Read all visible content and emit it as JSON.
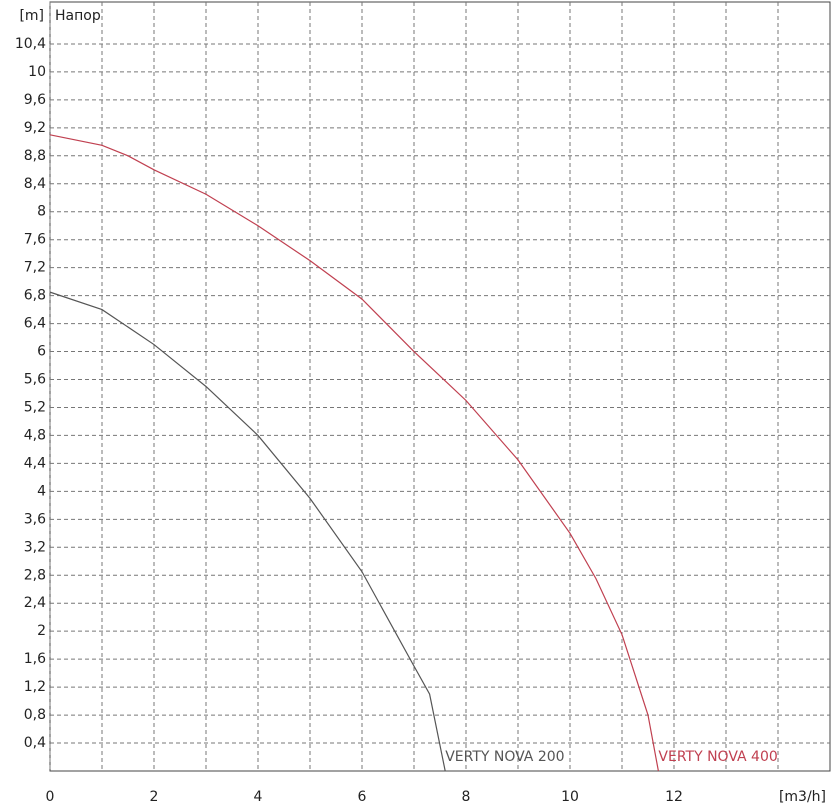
{
  "chart_data": {
    "type": "line",
    "title": "Напор",
    "y_label": "[m]",
    "x_label": "[m3/h]",
    "xlim": [
      0,
      15
    ],
    "ylim": [
      0,
      11
    ],
    "xticks": [
      0,
      2,
      4,
      6,
      8,
      10,
      12
    ],
    "x_minor_grid": [
      1,
      3,
      5,
      7,
      9,
      11,
      13,
      14
    ],
    "yticks": [
      {
        "value": 0.4,
        "label": "0,4"
      },
      {
        "value": 0.8,
        "label": "0,8"
      },
      {
        "value": 1.2,
        "label": "1,2"
      },
      {
        "value": 1.6,
        "label": "1,6"
      },
      2,
      {
        "value": 2.4,
        "label": "2,4"
      },
      {
        "value": 2.8,
        "label": "2,8"
      },
      {
        "value": 3.2,
        "label": "3,2"
      },
      {
        "value": 3.6,
        "label": "3,6"
      },
      4,
      {
        "value": 4.4,
        "label": "4,4"
      },
      {
        "value": 4.8,
        "label": "4,8"
      },
      {
        "value": 5.2,
        "label": "5,2"
      },
      {
        "value": 5.6,
        "label": "5,6"
      },
      6,
      {
        "value": 6.4,
        "label": "6,4"
      },
      {
        "value": 6.8,
        "label": "6,8"
      },
      {
        "value": 7.2,
        "label": "7,2"
      },
      {
        "value": 7.6,
        "label": "7,6"
      },
      8,
      {
        "value": 8.4,
        "label": "8,4"
      },
      {
        "value": 8.8,
        "label": "8,8"
      },
      {
        "value": 9.2,
        "label": "9,2"
      },
      {
        "value": 9.6,
        "label": "9,6"
      },
      10,
      {
        "value": 10.4,
        "label": "10,4"
      }
    ],
    "grid": true,
    "series": [
      {
        "name": "VERTY NOVA 200",
        "color": "#555555",
        "x": [
          0,
          1,
          2,
          3,
          4,
          5,
          6,
          7,
          7.3,
          7.6
        ],
        "values": [
          6.85,
          6.6,
          6.1,
          5.5,
          4.8,
          3.9,
          2.85,
          1.5,
          1.1,
          0
        ]
      },
      {
        "name": "VERTY NOVA 400",
        "color": "#c04050",
        "x": [
          0,
          1,
          1.5,
          2,
          3,
          4,
          5,
          6,
          7,
          8,
          9,
          10,
          10.5,
          11,
          11.5,
          11.7
        ],
        "values": [
          9.1,
          8.95,
          8.8,
          8.6,
          8.25,
          7.8,
          7.3,
          6.75,
          6.0,
          5.3,
          4.45,
          3.4,
          2.75,
          1.95,
          0.8,
          0
        ]
      }
    ]
  }
}
